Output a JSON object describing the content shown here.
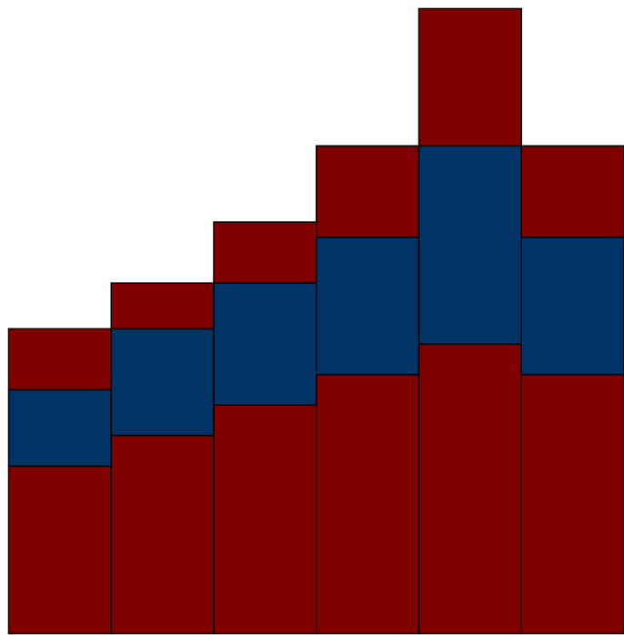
{
  "chart_data": {
    "type": "bar",
    "stacked": true,
    "categories": [
      "",
      "",
      "",
      "",
      "",
      ""
    ],
    "series": [
      {
        "values": [
          11,
          13,
          15,
          17,
          19,
          17
        ],
        "color": "#800000"
      },
      {
        "values": [
          5,
          7,
          8,
          9,
          13,
          9
        ],
        "color": "#003366"
      },
      {
        "values": [
          4,
          3,
          4,
          6,
          9,
          6
        ],
        "color": "#800000"
      }
    ],
    "title": "",
    "xlabel": "",
    "ylabel": "",
    "ylim": [
      0,
      41
    ],
    "grid": false,
    "legend": false,
    "bar_edge_color": "#000000"
  }
}
